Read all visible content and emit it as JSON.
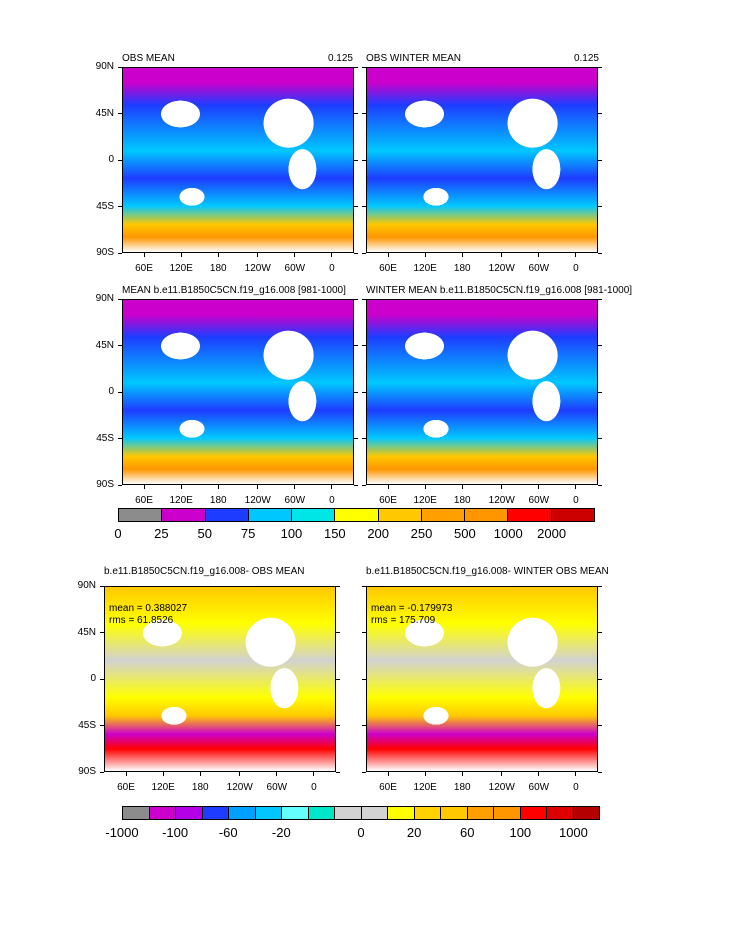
{
  "panels": [
    {
      "title": "OBS MEAN",
      "right": "0.125"
    },
    {
      "title": "OBS WINTER MEAN",
      "right": "0.125"
    },
    {
      "title": "MEAN b.e11.B1850C5CN.f19_g16.008 [981-1000]",
      "right": ""
    },
    {
      "title": "WINTER MEAN b.e11.B1850C5CN.f19_g16.008 [981-1000]",
      "right": ""
    },
    {
      "title": "b.e11.B1850C5CN.f19_g16.008- OBS MEAN",
      "right": ""
    },
    {
      "title": "b.e11.B1850C5CN.f19_g16.008- WINTER OBS MEAN",
      "right": ""
    }
  ],
  "lat_labels": [
    "90N",
    "45N",
    "0",
    "45S",
    "90S"
  ],
  "lon_labels": [
    "60E",
    "120E",
    "180",
    "120W",
    "60W",
    "0"
  ],
  "stats": [
    {
      "mean": "mean = 0.388027",
      "rms": "rms = 61.8526"
    },
    {
      "mean": "mean = -0.179973",
      "rms": "rms = 175.709"
    }
  ],
  "colorbar1": {
    "colors": [
      "#8c8c8c",
      "#cc00cc",
      "#1e3cff",
      "#00c8ff",
      "#00e6e6",
      "#ffff00",
      "#ffc800",
      "#ffa000",
      "#ff9600",
      "#ff0000",
      "#cc0000"
    ],
    "labels": [
      "0",
      "25",
      "50",
      "75",
      "100",
      "150",
      "200",
      "250",
      "500",
      "1000",
      "2000"
    ]
  },
  "colorbar2": {
    "colors": [
      "#8c8c8c",
      "#cc00cc",
      "#b400e6",
      "#1e3cff",
      "#00a0ff",
      "#00c8ff",
      "#64ffff",
      "#00e6c8",
      "#d2d2d2",
      "#d2d2d2",
      "#ffff00",
      "#ffd200",
      "#ffc800",
      "#ffa000",
      "#ff9600",
      "#ff0000",
      "#dc0000",
      "#b40000"
    ],
    "labels": [
      "-1000",
      "-100",
      "-60",
      "-20",
      "0",
      "20",
      "60",
      "100",
      "1000"
    ]
  }
}
